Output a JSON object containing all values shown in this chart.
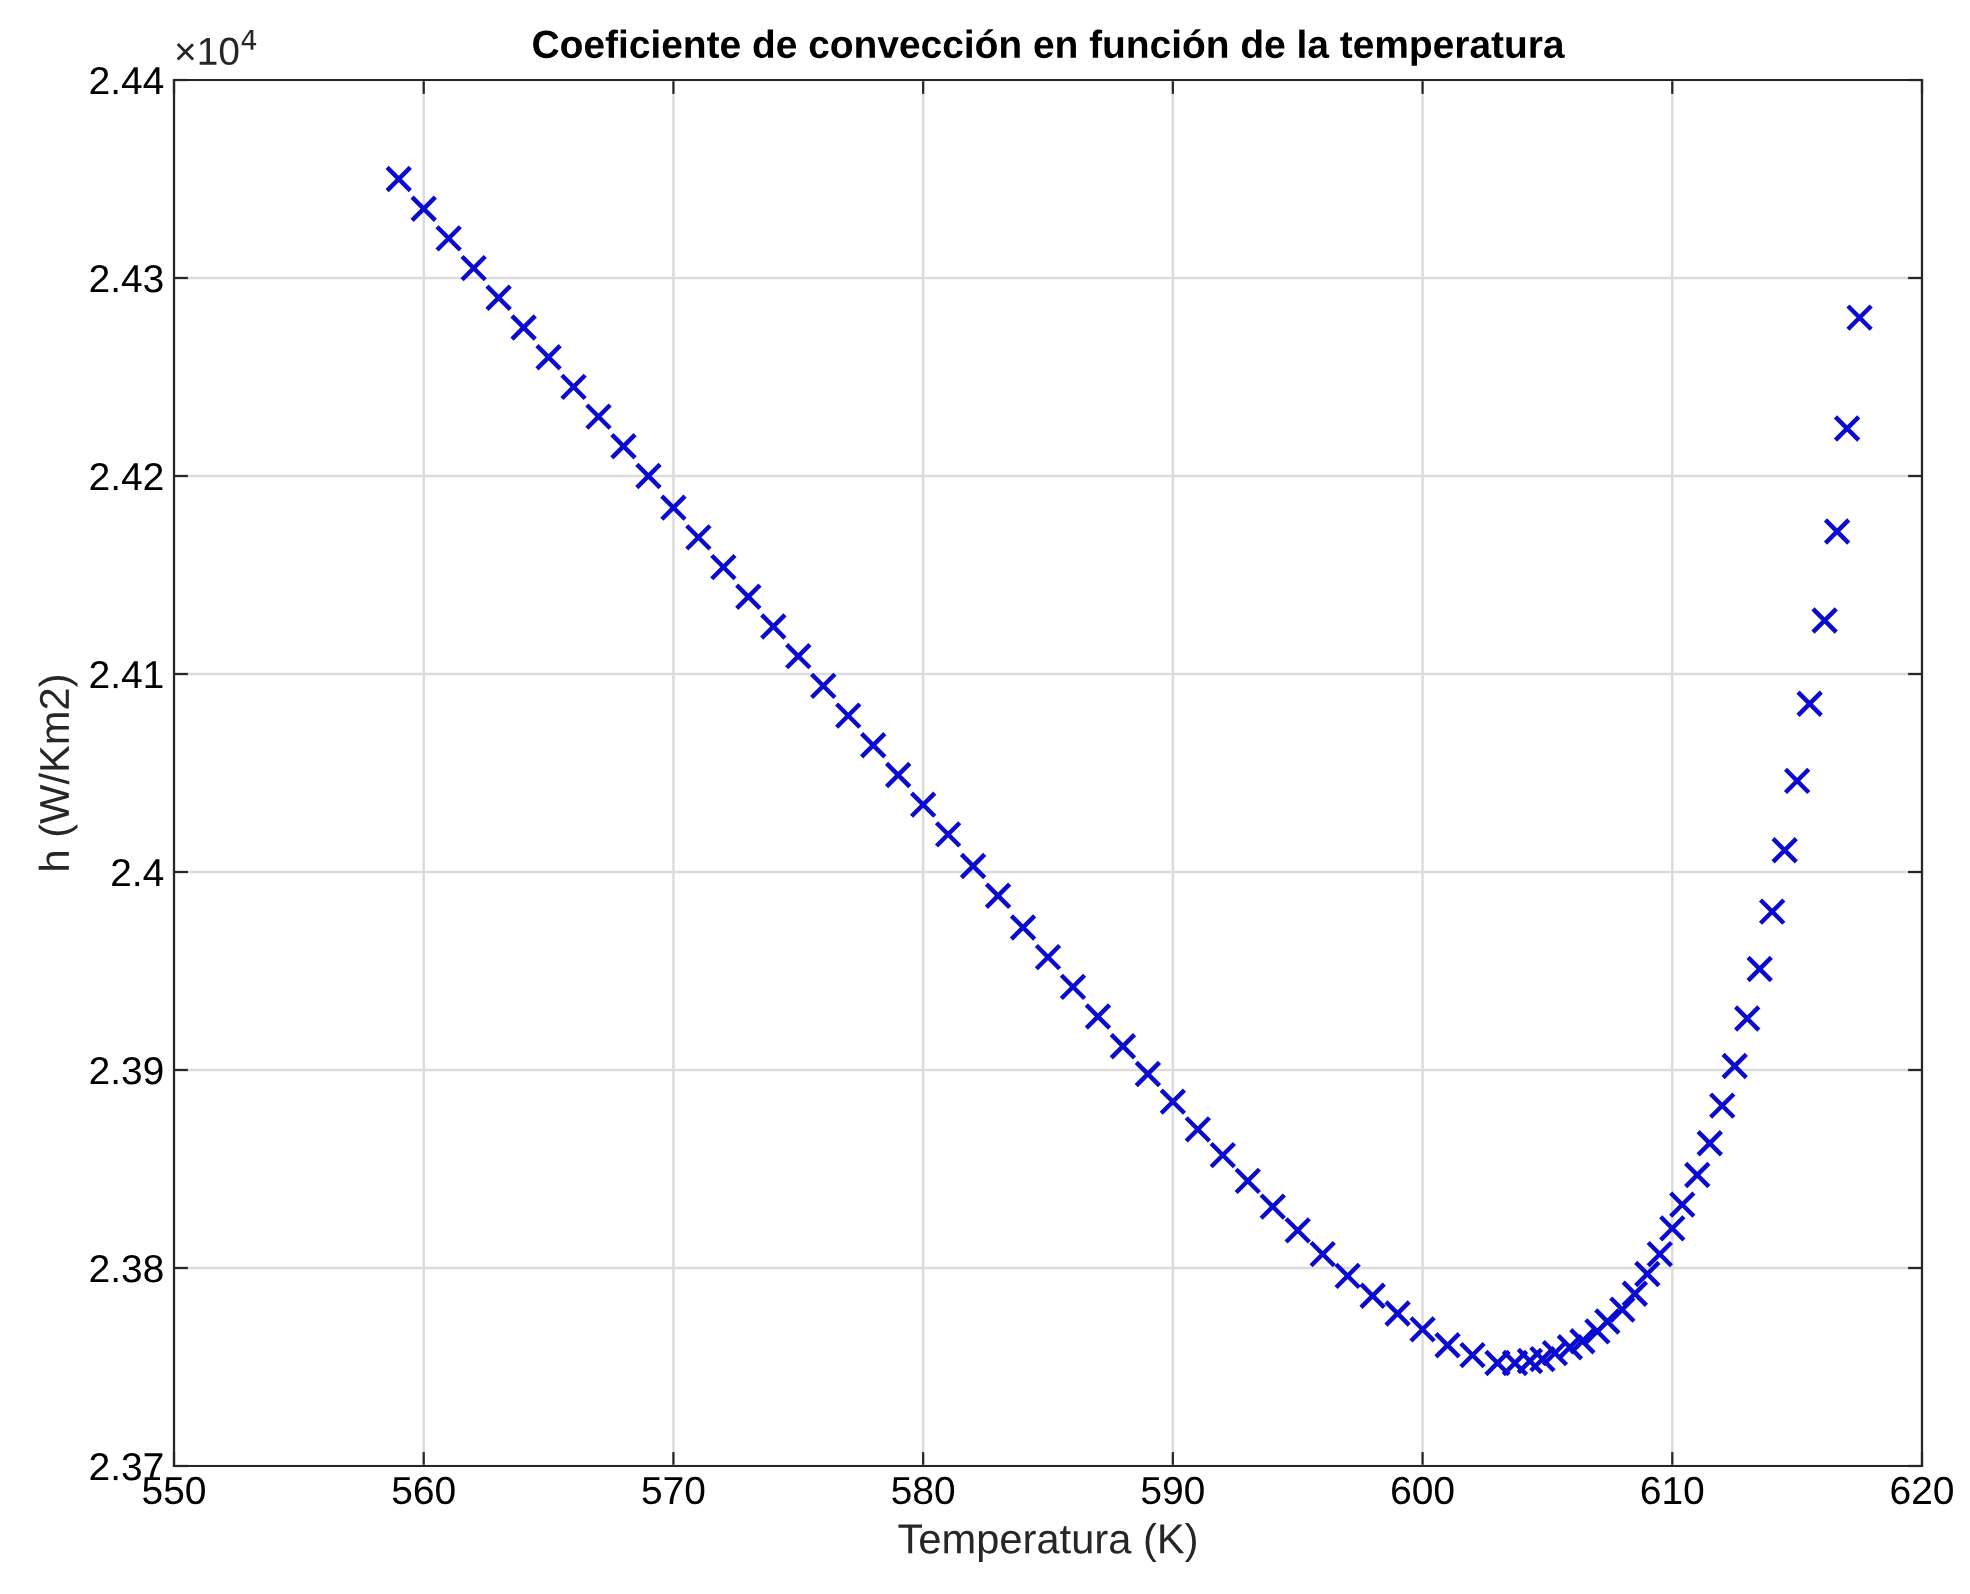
{
  "chart_data": {
    "type": "scatter",
    "title": "Coeficiente de convección en función de la temperatura",
    "xlabel": "Temperatura (K)",
    "ylabel": "h (W/Km2)",
    "annotations": [
      "×10$^{4}$"
    ],
    "xlim": [
      550,
      620
    ],
    "xticks": [
      550,
      560,
      570,
      580,
      590,
      600,
      610,
      620
    ],
    "ylim": [
      2.37,
      2.44
    ],
    "yticks": [
      2.37,
      2.38,
      2.39,
      2.4,
      2.41,
      2.42,
      2.43,
      2.44
    ],
    "grid": true,
    "marker": "cross",
    "series": [
      {
        "color": "#0a0ad0",
        "x": [
          559,
          560,
          561,
          562,
          563,
          564,
          565,
          566,
          567,
          568,
          569,
          570,
          571,
          572,
          573,
          574,
          575,
          576,
          577,
          578,
          579,
          580,
          581,
          582,
          583,
          584,
          585,
          586,
          587,
          588,
          589,
          590,
          591,
          592,
          593,
          594,
          595,
          596,
          597,
          598,
          599,
          600,
          601,
          602,
          603,
          603.7,
          604.3,
          604.8,
          605.3,
          605.9,
          606.4,
          607,
          607.4,
          608,
          608.5,
          609,
          609.5,
          610,
          610.4,
          611,
          611.5,
          612,
          612.5,
          613,
          613.5,
          614,
          614.5,
          615,
          615.5,
          616.1,
          616.6,
          617,
          617.5
        ],
        "values": [
          2.435,
          2.4335,
          2.432,
          2.4305,
          2.429,
          2.4275,
          2.426,
          2.4245,
          2.423,
          2.4215,
          2.42,
          2.4184,
          2.4169,
          2.4154,
          2.4139,
          2.4124,
          2.4109,
          2.4094,
          2.4079,
          2.4064,
          2.4049,
          2.4034,
          2.4019,
          2.4003,
          2.3988,
          2.3972,
          2.3957,
          2.3942,
          2.3927,
          2.3912,
          2.3898,
          2.3884,
          2.387,
          2.3857,
          2.3844,
          2.3831,
          2.3819,
          2.3807,
          2.3796,
          2.3786,
          2.3777,
          2.3769,
          2.3761,
          2.3756,
          2.3752,
          2.3752,
          2.3753,
          2.3754,
          2.3757,
          2.376,
          2.3763,
          2.3768,
          2.3773,
          2.3779,
          2.3787,
          2.3797,
          2.3807,
          2.382,
          2.3832,
          2.3847,
          2.3863,
          2.3882,
          2.3902,
          2.3926,
          2.3951,
          2.398,
          2.4011,
          2.4046,
          2.4085,
          2.4127,
          2.4172,
          2.4224,
          2.428
        ]
      }
    ]
  }
}
